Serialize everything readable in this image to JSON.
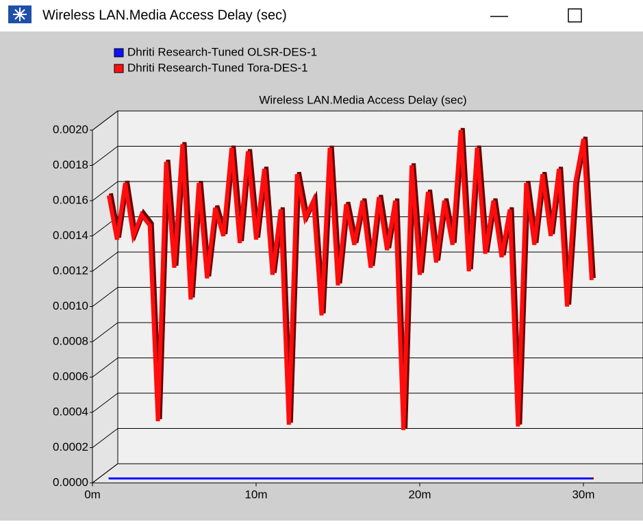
{
  "window": {
    "title": "Wireless LAN.Media Access Delay (sec)"
  },
  "chart_data": {
    "type": "line",
    "title": "Wireless LAN.Media Access Delay (sec)",
    "legend": "top-left",
    "grid": true,
    "xlim": [
      0,
      33
    ],
    "xticks": [
      {
        "value": 0,
        "label": "0m"
      },
      {
        "value": 10,
        "label": "10m"
      },
      {
        "value": 20,
        "label": "20m"
      },
      {
        "value": 30,
        "label": "30m"
      }
    ],
    "ylim": [
      0,
      0.002
    ],
    "yticks": [
      {
        "value": 0,
        "label": "0.0000"
      },
      {
        "value": 0.0002,
        "label": "0.0002"
      },
      {
        "value": 0.0004,
        "label": "0.0004"
      },
      {
        "value": 0.0006,
        "label": "0.0006"
      },
      {
        "value": 0.0008,
        "label": "0.0008"
      },
      {
        "value": 0.001,
        "label": "0.0010"
      },
      {
        "value": 0.0012,
        "label": "0.0012"
      },
      {
        "value": 0.0014,
        "label": "0.0014"
      },
      {
        "value": 0.0016,
        "label": "0.0016"
      },
      {
        "value": 0.0018,
        "label": "0.0018"
      },
      {
        "value": 0.002,
        "label": "0.0020"
      }
    ],
    "x": [
      1,
      1.5,
      2,
      2.5,
      3,
      3.5,
      4,
      4.5,
      5,
      5.5,
      6,
      6.5,
      7,
      7.5,
      8,
      8.5,
      9,
      9.5,
      10,
      10.5,
      11,
      11.5,
      12,
      12.5,
      13,
      13.5,
      14,
      14.5,
      15,
      15.5,
      16,
      16.5,
      17,
      17.5,
      18,
      18.5,
      19,
      19.5,
      20,
      20.5,
      21,
      21.5,
      22,
      22.5,
      23,
      23.5,
      24,
      24.5,
      25,
      25.5,
      26,
      26.5,
      27,
      27.5,
      28,
      28.5,
      29,
      29.5,
      30,
      30.5
    ],
    "series": [
      {
        "name": "Dhriti Research-Tuned OLSR-DES-1",
        "color": "#1010ff",
        "values": [
          2e-05,
          3e-05,
          2e-05,
          3e-05,
          2e-05,
          2e-05,
          3e-05,
          2e-05,
          2e-05,
          3e-05,
          2e-05,
          2e-05,
          2e-05,
          3e-05,
          2e-05,
          2e-05,
          2e-05,
          2e-05,
          3e-05,
          2e-05,
          2e-05,
          2e-05,
          2e-05,
          3e-05,
          2e-05,
          3e-05,
          2e-05,
          2e-05,
          3e-05,
          2e-05,
          2e-05,
          2e-05,
          2e-05,
          2e-05,
          2e-05,
          3e-05,
          2e-05,
          2e-05,
          2e-05,
          2e-05,
          3e-05,
          2e-05,
          2e-05,
          3e-05,
          2e-05,
          2e-05,
          3e-05,
          2e-05,
          2e-05,
          3e-05,
          2e-05,
          2e-05,
          3e-05,
          2e-05,
          2e-05,
          2e-05,
          2e-05,
          2e-05,
          2e-05,
          2e-05
        ]
      },
      {
        "name": "Dhriti Research-Tuned Tora-DES-1",
        "color": "#ff1010",
        "values": [
          0.00163,
          0.00138,
          0.0017,
          0.0014,
          0.00152,
          0.00146,
          0.00035,
          0.00182,
          0.00122,
          0.00192,
          0.00104,
          0.0017,
          0.00116,
          0.00156,
          0.0014,
          0.0019,
          0.00136,
          0.00188,
          0.00138,
          0.00178,
          0.00118,
          0.00155,
          0.00033,
          0.00175,
          0.0015,
          0.0016,
          0.00095,
          0.0019,
          0.00112,
          0.00158,
          0.00135,
          0.0016,
          0.00122,
          0.00162,
          0.00132,
          0.0016,
          0.0003,
          0.0018,
          0.00118,
          0.00165,
          0.00125,
          0.0016,
          0.00135,
          0.002,
          0.0012,
          0.0019,
          0.0013,
          0.0016,
          0.00128,
          0.00155,
          0.00032,
          0.0017,
          0.00135,
          0.00175,
          0.0014,
          0.00178,
          0.001,
          0.0017,
          0.00195,
          0.00115
        ]
      }
    ]
  }
}
